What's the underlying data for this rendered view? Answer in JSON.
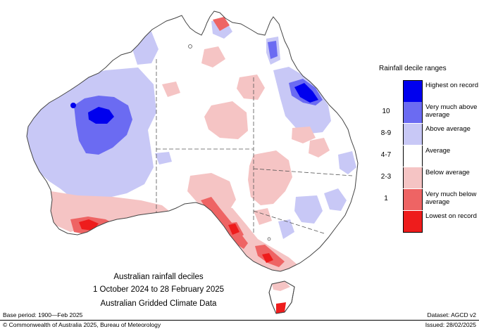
{
  "legend": {
    "title": "Rainfall decile ranges",
    "items": [
      {
        "code": "",
        "label": "Highest on record",
        "color": "#0000ee"
      },
      {
        "code": "10",
        "label": "Very much above average",
        "color": "#6b6bf2"
      },
      {
        "code": "8-9",
        "label": "Above average",
        "color": "#c8c8f6"
      },
      {
        "code": "4-7",
        "label": "Average",
        "color": "#ffffff"
      },
      {
        "code": "2-3",
        "label": "Below average",
        "color": "#f5c4c4"
      },
      {
        "code": "1",
        "label": "Very much below average",
        "color": "#ee6464"
      },
      {
        "code": "",
        "label": "Lowest on record",
        "color": "#ee1c1c"
      }
    ]
  },
  "caption": {
    "line1": "Australian rainfall deciles",
    "line2": "1 October 2024 to 28 February 2025",
    "line3": "Australian Gridded Climate Data"
  },
  "footer": {
    "base_period": "Base period: 1900—Feb 2025",
    "dataset": "Dataset: AGCD v2",
    "copyright": "© Commonwealth of Australia 2025, Bureau of Meteorology",
    "issued": "Issued: 28/02/2025"
  },
  "map": {
    "colors": {
      "above": "#c8c8f6",
      "very_above": "#6b6bf2",
      "highest": "#0000ee",
      "below": "#f5c4c4",
      "very_below": "#ee6464",
      "lowest": "#ee1c1c",
      "outline": "#444444"
    }
  }
}
